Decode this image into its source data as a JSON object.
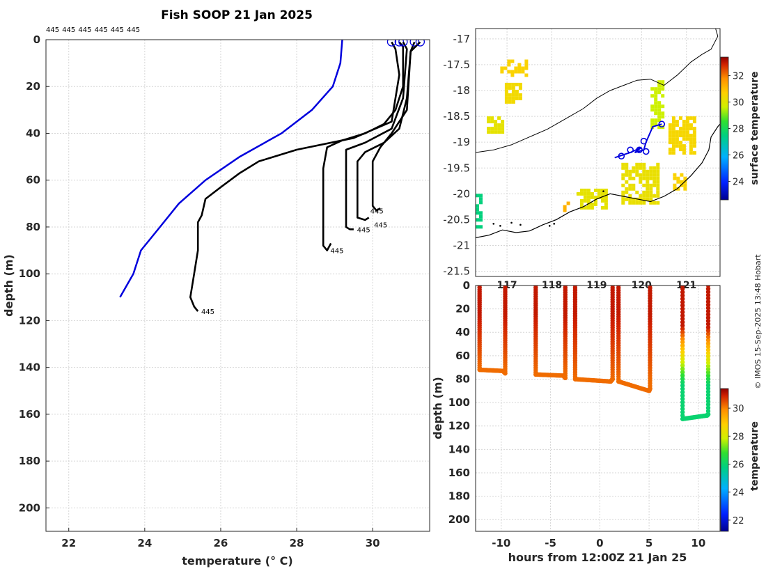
{
  "chart_data": [
    {
      "type": "line",
      "panel": "profiles",
      "title": "Fish SOOP 21 Jan 2025",
      "xlabel": "temperature (° C)",
      "ylabel": "depth (m)",
      "xlim": [
        21.4,
        31.5
      ],
      "ylim": [
        210,
        0
      ],
      "x_ticks": [
        22,
        24,
        26,
        28,
        30
      ],
      "y_ticks": [
        0,
        20,
        40,
        60,
        80,
        100,
        120,
        140,
        160,
        180,
        200
      ],
      "grid": true,
      "top_labels": [
        "445",
        "445",
        "445",
        "445",
        "445",
        "445"
      ],
      "profile_label": "445",
      "climatology": {
        "color": "#0000dd",
        "points": [
          [
            29.2,
            0
          ],
          [
            29.15,
            10
          ],
          [
            28.95,
            20
          ],
          [
            28.4,
            30
          ],
          [
            27.6,
            40
          ],
          [
            26.5,
            50
          ],
          [
            25.6,
            60
          ],
          [
            24.9,
            70
          ],
          [
            24.4,
            80
          ],
          [
            23.9,
            90
          ],
          [
            23.7,
            100
          ],
          [
            23.35,
            110
          ]
        ]
      },
      "profiles": [
        {
          "points": [
            [
              30.5,
              1
            ],
            [
              30.6,
              4
            ],
            [
              30.7,
              15
            ],
            [
              30.6,
              25
            ],
            [
              30.5,
              35
            ],
            [
              29.5,
              42
            ],
            [
              28.0,
              47
            ],
            [
              27.0,
              52
            ],
            [
              26.5,
              57
            ],
            [
              26.0,
              63
            ],
            [
              25.6,
              68
            ],
            [
              25.5,
              75
            ],
            [
              25.4,
              78
            ],
            [
              25.4,
              90
            ],
            [
              25.3,
              100
            ],
            [
              25.2,
              110
            ],
            [
              25.3,
              114
            ],
            [
              25.4,
              116
            ]
          ],
          "label_at": [
            25.45,
            116
          ]
        },
        {
          "points": [
            [
              30.7,
              1
            ],
            [
              30.8,
              3
            ],
            [
              30.8,
              20
            ],
            [
              30.6,
              30
            ],
            [
              30.3,
              36
            ],
            [
              29.8,
              40
            ],
            [
              29.2,
              43
            ],
            [
              28.8,
              46
            ],
            [
              28.7,
              55
            ],
            [
              28.7,
              88
            ],
            [
              28.8,
              90
            ],
            [
              28.9,
              87
            ]
          ],
          "label_at": [
            28.85,
            90
          ]
        },
        {
          "points": [
            [
              30.8,
              1
            ],
            [
              30.9,
              4
            ],
            [
              30.8,
              25
            ],
            [
              30.5,
              38
            ],
            [
              29.8,
              44
            ],
            [
              29.3,
              47
            ],
            [
              29.3,
              80
            ],
            [
              29.4,
              81
            ],
            [
              29.5,
              81
            ]
          ],
          "label_at": [
            29.55,
            81
          ]
        },
        {
          "points": [
            [
              31.1,
              1
            ],
            [
              31.0,
              5
            ],
            [
              30.9,
              25
            ],
            [
              30.7,
              38
            ],
            [
              30.3,
              44
            ],
            [
              29.8,
              48
            ],
            [
              29.6,
              52
            ],
            [
              29.6,
              76
            ],
            [
              29.8,
              77
            ],
            [
              29.9,
              76
            ]
          ],
          "label_at": [
            30.0,
            79
          ]
        },
        {
          "points": [
            [
              31.25,
              1
            ],
            [
              31.0,
              5
            ],
            [
              30.9,
              30
            ],
            [
              30.5,
              40
            ],
            [
              30.2,
              46
            ],
            [
              30.0,
              52
            ],
            [
              30.0,
              71
            ],
            [
              30.1,
              73
            ],
            [
              30.2,
              72
            ]
          ],
          "label_at": [
            29.9,
            73
          ]
        }
      ]
    },
    {
      "type": "heatmap",
      "panel": "map",
      "x_ticks": [
        117,
        118,
        119,
        120,
        121
      ],
      "y_ticks": [
        -17,
        -17.5,
        -18,
        -18.5,
        -19,
        -19.5,
        -20,
        -20.5,
        -21,
        -21.5
      ],
      "xlim": [
        116.3,
        121.75
      ],
      "ylim": [
        -21.6,
        -16.8
      ],
      "colorbar_label": "surface temperature",
      "colorbar_ticks": [
        24,
        26,
        28,
        30,
        32
      ],
      "colorbar_range": [
        22.6,
        33.4
      ],
      "track_color": "#0000dd",
      "sst_patches": [
        {
          "lon": [
            116.85,
            117.4
          ],
          "lat": [
            -17.7,
            -17.4
          ],
          "temp": 30.6
        },
        {
          "lon": [
            116.95,
            117.3
          ],
          "lat": [
            -18.25,
            -17.85
          ],
          "temp": 30.4
        },
        {
          "lon": [
            116.55,
            116.9
          ],
          "lat": [
            -18.8,
            -18.5
          ],
          "temp": 30.1
        },
        {
          "lon": [
            119.55,
            120.4
          ],
          "lat": [
            -20.2,
            -19.4
          ],
          "temp": 30.2
        },
        {
          "lon": [
            120.6,
            121.2
          ],
          "lat": [
            -19.2,
            -18.5
          ],
          "temp": 30.5
        },
        {
          "lon": [
            120.2,
            120.5
          ],
          "lat": [
            -18.7,
            -17.8
          ],
          "temp": 29.6
        },
        {
          "lon": [
            118.55,
            119.2
          ],
          "lat": [
            -20.3,
            -19.9
          ],
          "temp": 30.1
        },
        {
          "lon": [
            118.25,
            118.4
          ],
          "lat": [
            -20.3,
            -20.15
          ],
          "temp": 31.2
        },
        {
          "lon": [
            116.3,
            116.42
          ],
          "lat": [
            -20.65,
            -20.0
          ],
          "temp": 27.5
        },
        {
          "lon": [
            120.7,
            121.0
          ],
          "lat": [
            -19.9,
            -19.6
          ],
          "temp": 30.6
        }
      ],
      "track": [
        [
          119.4,
          -19.3
        ],
        [
          119.75,
          -19.2
        ],
        [
          120.0,
          -19.1
        ],
        [
          119.85,
          -19.2
        ],
        [
          120.05,
          -19.15
        ],
        [
          120.1,
          -19.0
        ],
        [
          120.25,
          -18.7
        ],
        [
          120.45,
          -18.65
        ]
      ],
      "coast": [
        [
          116.3,
          -20.85
        ],
        [
          116.6,
          -20.8
        ],
        [
          116.9,
          -20.7
        ],
        [
          117.2,
          -20.75
        ],
        [
          117.5,
          -20.72
        ],
        [
          117.8,
          -20.6
        ],
        [
          118.1,
          -20.5
        ],
        [
          118.4,
          -20.35
        ],
        [
          118.7,
          -20.25
        ],
        [
          119.0,
          -20.1
        ],
        [
          119.3,
          -20.0
        ],
        [
          119.6,
          -20.05
        ],
        [
          119.9,
          -20.1
        ],
        [
          120.2,
          -20.15
        ],
        [
          120.5,
          -20.05
        ],
        [
          120.8,
          -19.9
        ],
        [
          121.1,
          -19.65
        ],
        [
          121.35,
          -19.4
        ],
        [
          121.5,
          -19.15
        ],
        [
          121.55,
          -18.9
        ],
        [
          121.7,
          -18.7
        ],
        [
          121.75,
          -18.65
        ]
      ],
      "isobath": [
        [
          116.3,
          -19.2
        ],
        [
          116.7,
          -19.15
        ],
        [
          117.1,
          -19.05
        ],
        [
          117.5,
          -18.9
        ],
        [
          117.9,
          -18.75
        ],
        [
          118.3,
          -18.55
        ],
        [
          118.7,
          -18.35
        ],
        [
          119.0,
          -18.15
        ],
        [
          119.3,
          -18.0
        ],
        [
          119.6,
          -17.9
        ],
        [
          119.9,
          -17.8
        ],
        [
          120.2,
          -17.78
        ],
        [
          120.5,
          -17.9
        ],
        [
          120.8,
          -17.7
        ],
        [
          121.1,
          -17.45
        ],
        [
          121.35,
          -17.3
        ],
        [
          121.55,
          -17.2
        ],
        [
          121.7,
          -16.95
        ],
        [
          121.65,
          -16.8
        ]
      ]
    },
    {
      "type": "scatter",
      "panel": "depth_time",
      "xlabel": "hours from 12:00Z 21 Jan 25",
      "ylabel": "depth (m)",
      "xlim": [
        -12.6,
        12.2
      ],
      "ylim": [
        210,
        0
      ],
      "x_ticks": [
        -10,
        -5,
        0,
        5,
        10
      ],
      "y_ticks": [
        0,
        20,
        40,
        60,
        80,
        100,
        120,
        140,
        160,
        180,
        200
      ],
      "colorbar_label": "temperature",
      "colorbar_ticks": [
        22,
        24,
        26,
        28,
        30
      ],
      "colorbar_range": [
        21.2,
        31.4
      ],
      "segments": [
        {
          "x": [
            -12.2,
            -12.2,
            -9.8,
            -9.6,
            -9.6
          ],
          "depth": [
            0,
            72,
            73,
            75,
            0
          ]
        },
        {
          "x": [
            -6.5,
            -6.5,
            -3.7,
            -3.5,
            -3.5
          ],
          "depth": [
            0,
            76,
            77,
            79,
            0
          ]
        },
        {
          "x": [
            -2.5,
            -2.5,
            1.1,
            1.3,
            1.3
          ],
          "depth": [
            0,
            80,
            82,
            80,
            0
          ]
        },
        {
          "x": [
            1.9,
            1.9,
            5.0,
            5.1,
            5.1
          ],
          "depth": [
            0,
            82,
            90,
            88,
            0
          ]
        },
        {
          "x": [
            8.4,
            8.4,
            10.9,
            11.0,
            11.0
          ],
          "depth": [
            0,
            114,
            111,
            110,
            0
          ]
        }
      ]
    }
  ],
  "credit": "© IMOS 15-Sep-2025 13:48 Hobart"
}
